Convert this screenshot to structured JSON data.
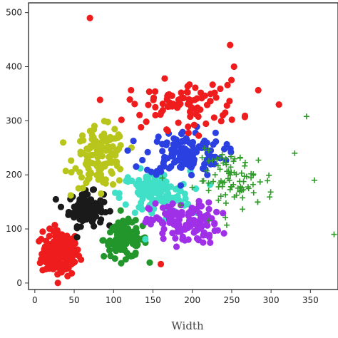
{
  "chart_data": {
    "type": "scatter",
    "title": "",
    "xlabel": "Width",
    "ylabel": "",
    "xlim": [
      -8,
      385
    ],
    "ylim": [
      -12,
      518
    ],
    "xticks": [
      "0",
      "50",
      "100",
      "150",
      "200",
      "250",
      "300",
      "350"
    ],
    "yticks": [
      "0",
      "100",
      "200",
      "300",
      "400",
      "500"
    ],
    "grid": false,
    "legend": "none",
    "clusters": [
      {
        "color": "#ee1c1c",
        "marker": "circle",
        "center": [
          33,
          55
        ],
        "spread": [
          22,
          38
        ],
        "count": 170
      },
      {
        "color": "#1a1a1a",
        "marker": "circle",
        "center": [
          65,
          137
        ],
        "spread": [
          20,
          28
        ],
        "count": 110
      },
      {
        "color": "#22962a",
        "marker": "circle",
        "center": [
          115,
          80
        ],
        "spread": [
          25,
          30
        ],
        "count": 110
      },
      {
        "color": "#b8c61c",
        "marker": "circle",
        "center": [
          83,
          232
        ],
        "spread": [
          30,
          50
        ],
        "count": 130
      },
      {
        "color": "#40e0c8",
        "marker": "circle",
        "center": [
          153,
          165
        ],
        "spread": [
          40,
          38
        ],
        "count": 120
      },
      {
        "color": "#2a40e0",
        "marker": "circle",
        "center": [
          190,
          240
        ],
        "spread": [
          45,
          38
        ],
        "count": 130
      },
      {
        "color": "#a030e8",
        "marker": "circle",
        "center": [
          190,
          110
        ],
        "spread": [
          40,
          35
        ],
        "count": 130
      },
      {
        "color": "#ee1c1c",
        "marker": "circle",
        "center": [
          190,
          330
        ],
        "spread": [
          65,
          40
        ],
        "count": 90
      },
      {
        "color": "#2e9a28",
        "marker": "plus",
        "center": [
          255,
          190
        ],
        "spread": [
          45,
          48
        ],
        "count": 90
      }
    ],
    "outliers": [
      {
        "color": "#ee1c1c",
        "marker": "circle",
        "x": 70,
        "y": 490
      },
      {
        "color": "#ee1c1c",
        "marker": "circle",
        "x": 248,
        "y": 440
      },
      {
        "color": "#ee1c1c",
        "marker": "circle",
        "x": 253,
        "y": 400
      },
      {
        "color": "#ee1c1c",
        "marker": "circle",
        "x": 310,
        "y": 330
      },
      {
        "color": "#ee1c1c",
        "marker": "circle",
        "x": 10,
        "y": 95
      },
      {
        "color": "#ee1c1c",
        "marker": "circle",
        "x": 160,
        "y": 35
      },
      {
        "color": "#2e9a28",
        "marker": "plus",
        "x": 345,
        "y": 308
      },
      {
        "color": "#2e9a28",
        "marker": "plus",
        "x": 380,
        "y": 90
      },
      {
        "color": "#2e9a28",
        "marker": "plus",
        "x": 330,
        "y": 240
      },
      {
        "color": "#2e9a28",
        "marker": "plus",
        "x": 355,
        "y": 190
      }
    ]
  }
}
